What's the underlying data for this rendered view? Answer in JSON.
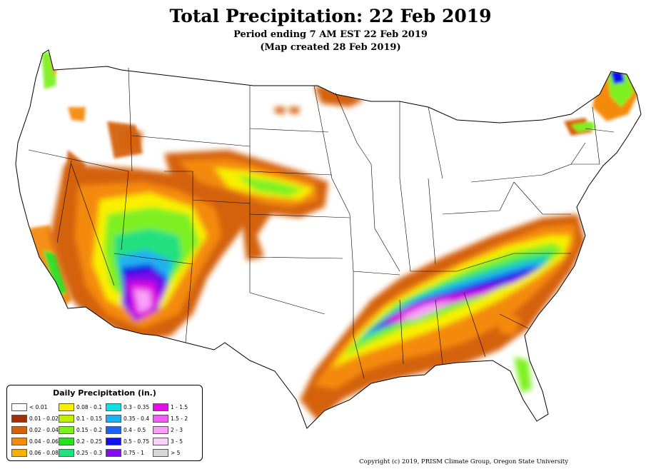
{
  "header": {
    "title": "Total Precipitation: 22 Feb 2019",
    "period": "Period ending 7 AM EST 22 Feb 2019",
    "created": "(Map created 28 Feb 2019)"
  },
  "legend": {
    "title": "Daily Precipitation (in.)",
    "items": [
      {
        "label": "< 0.01",
        "color": "#ffffff"
      },
      {
        "label": "0.01 - 0.02",
        "color": "#a0300a"
      },
      {
        "label": "0.02 - 0.04",
        "color": "#d4620f"
      },
      {
        "label": "0.04 - 0.06",
        "color": "#f48a0a"
      },
      {
        "label": "0.06 - 0.08",
        "color": "#f7b000"
      },
      {
        "label": "0.08 - 0.1",
        "color": "#f8f000"
      },
      {
        "label": "0.1 - 0.15",
        "color": "#c0f000"
      },
      {
        "label": "0.15 - 0.2",
        "color": "#7ef020"
      },
      {
        "label": "0.2 - 0.25",
        "color": "#28e020"
      },
      {
        "label": "0.25 - 0.3",
        "color": "#20e080"
      },
      {
        "label": "0.3 - 0.35",
        "color": "#10e0e0"
      },
      {
        "label": "0.35 - 0.4",
        "color": "#20b0f0"
      },
      {
        "label": "0.4 - 0.5",
        "color": "#2060f0"
      },
      {
        "label": "0.5 - 0.75",
        "color": "#1010e8"
      },
      {
        "label": "0.75 - 1",
        "color": "#8010e8"
      },
      {
        "label": "1 - 1.5",
        "color": "#e010e0"
      },
      {
        "label": "1.5 - 2",
        "color": "#f060f0"
      },
      {
        "label": "2 - 3",
        "color": "#f8a0f8"
      },
      {
        "label": "3 - 5",
        "color": "#f8d0f8"
      },
      {
        "label": "> 5",
        "color": "#d8d8d8"
      }
    ]
  },
  "footer": {
    "copyright": "Copyright (c) 2019, PRISM Climate Group, Oregon State University"
  }
}
